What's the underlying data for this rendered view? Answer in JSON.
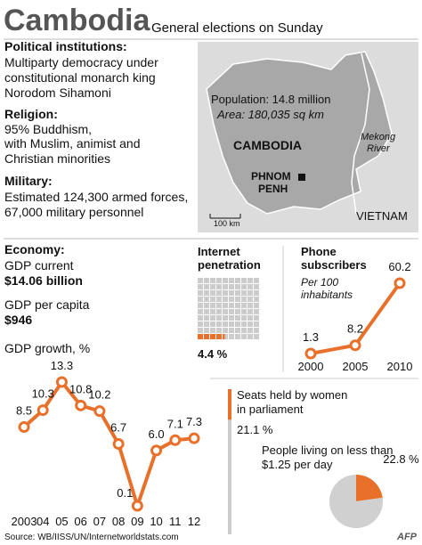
{
  "header": {
    "title": "Cambodia",
    "subtitle": "General elections on Sunday"
  },
  "facts": [
    {
      "heading": "Political institutions:",
      "text": [
        "Multiparty democracy under",
        "constitutional monarch king",
        "Norodom Sihamoni"
      ]
    },
    {
      "heading": "Religion:",
      "text": [
        "95% Buddhism,",
        "with Muslim, animist and",
        "Christian minorities"
      ]
    },
    {
      "heading": "Military:",
      "text": [
        "Estimated 124,300 armed forces,",
        "67,000 military personnel"
      ]
    }
  ],
  "map": {
    "population": "Population: 14.8 million",
    "area": "Area: 180,035 sq km",
    "country": "CAMBODIA",
    "capital": [
      "PHNOM",
      "PENH"
    ],
    "river": [
      "Mekong",
      "River"
    ],
    "neighbor": "VIETNAM",
    "scale": "100 km"
  },
  "economy": {
    "heading": "Economy:",
    "gdp_label": "GDP current",
    "gdp_value": "$14.06 billion",
    "gdp_capita_label": "GDP per capita",
    "gdp_capita_value": "$946"
  },
  "chart_data": [
    {
      "type": "line",
      "title": "GDP growth, %",
      "color": "#e8702a",
      "categories": [
        "2003",
        "04",
        "05",
        "06",
        "07",
        "08",
        "09",
        "10",
        "11",
        "12"
      ],
      "values": [
        8.5,
        10.3,
        13.3,
        10.8,
        10.2,
        6.7,
        0.1,
        6.0,
        7.1,
        7.3
      ],
      "value_labels": [
        "8.5",
        "10.3",
        "13.3",
        "10.8",
        "10.2",
        "6.7",
        "0.1",
        "6.0",
        "7.1",
        "7.3"
      ]
    },
    {
      "type": "line",
      "title": [
        "Phone",
        "subscribers"
      ],
      "subtitle": [
        "Per 100",
        "inhabitants"
      ],
      "color": "#e8702a",
      "categories": [
        "2000",
        "2005",
        "2010"
      ],
      "values": [
        1.3,
        8.2,
        60.2
      ]
    },
    {
      "type": "waffle",
      "title": [
        "Internet",
        "penetration"
      ],
      "values": [
        4.4,
        95.6
      ],
      "colors": [
        "#e8702a",
        "#cccccc"
      ],
      "value_labels": [
        "4.4 %",
        null
      ]
    },
    {
      "type": "bar",
      "title": [
        "Seats held by women",
        "in parliament"
      ],
      "values": [
        21.1,
        78.9
      ],
      "colors": [
        "#e8702a",
        "#cccccc"
      ],
      "value_labels": [
        "21.1 %",
        null
      ]
    },
    {
      "type": "pie",
      "title": [
        "People living on less than",
        "$1.25 per day"
      ],
      "values": [
        22.8,
        77.2
      ],
      "colors": [
        "#e8702a",
        "#d0d0d0"
      ],
      "value_labels": [
        "22.8 %",
        null
      ]
    }
  ],
  "source": "Source: WB/IISS/UN/Internetworldstats.com",
  "credit": "AFP"
}
